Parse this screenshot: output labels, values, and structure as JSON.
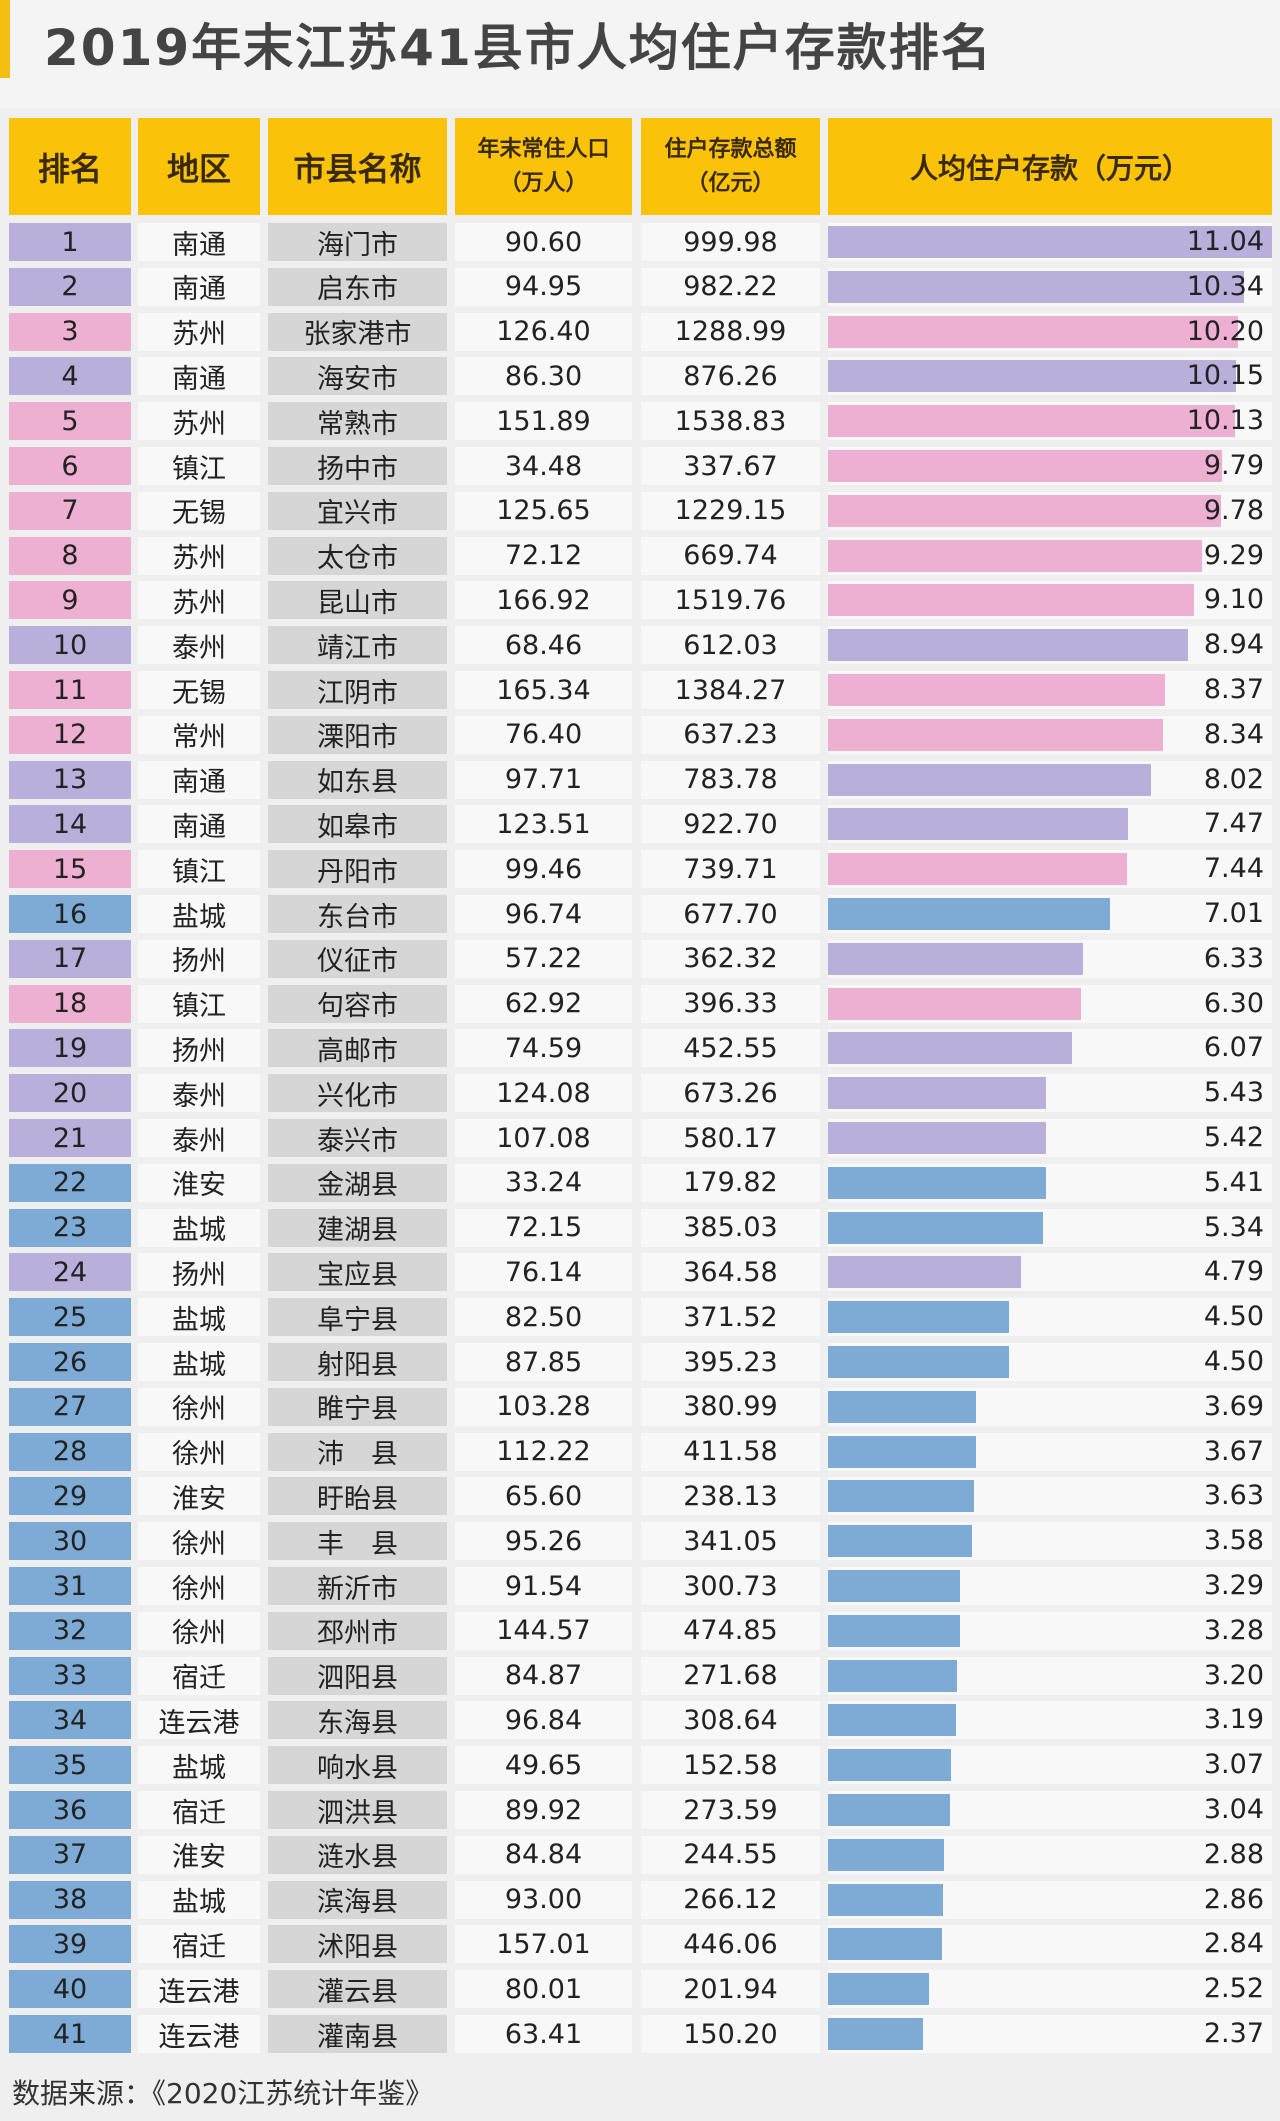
{
  "title": "2019年末江苏41县市人均住户存款排名",
  "headers": {
    "rank": "排名",
    "region": "地区",
    "name": "市县名称",
    "pop": "年末常住人口",
    "pop_unit": "（万人）",
    "dep": "住户存款总额",
    "dep_unit": "（亿元）",
    "per": "人均住户存款（万元）"
  },
  "source": "数据来源：《2020江苏统计年鉴》",
  "colors": {
    "purple": "#b9afdb",
    "pink": "#eeb0d2",
    "blue": "#7eabd6",
    "header": "#fbc20a"
  },
  "region_color": {
    "南通": "purple",
    "泰州": "purple",
    "扬州": "purple",
    "苏州": "pink",
    "镇江": "pink",
    "无锡": "pink",
    "常州": "pink",
    "盐城": "blue",
    "淮安": "blue",
    "徐州": "blue",
    "宿迁": "blue",
    "连云港": "blue"
  },
  "chart_data": {
    "type": "bar",
    "xlim": [
      0,
      11.04
    ],
    "columns": [
      "排名",
      "地区",
      "市县名称",
      "年末常住人口（万人）",
      "住户存款总额（亿元）",
      "人均住户存款（万元）"
    ],
    "rows": [
      [
        "1",
        "南通",
        "海门市",
        "90.60",
        "999.98",
        "11.04"
      ],
      [
        "2",
        "南通",
        "启东市",
        "94.95",
        "982.22",
        "10.34"
      ],
      [
        "3",
        "苏州",
        "张家港市",
        "126.40",
        "1288.99",
        "10.20"
      ],
      [
        "4",
        "南通",
        "海安市",
        "86.30",
        "876.26",
        "10.15"
      ],
      [
        "5",
        "苏州",
        "常熟市",
        "151.89",
        "1538.83",
        "10.13"
      ],
      [
        "6",
        "镇江",
        "扬中市",
        "34.48",
        "337.67",
        "9.79"
      ],
      [
        "7",
        "无锡",
        "宜兴市",
        "125.65",
        "1229.15",
        "9.78"
      ],
      [
        "8",
        "苏州",
        "太仓市",
        "72.12",
        "669.74",
        "9.29"
      ],
      [
        "9",
        "苏州",
        "昆山市",
        "166.92",
        "1519.76",
        "9.10"
      ],
      [
        "10",
        "泰州",
        "靖江市",
        "68.46",
        "612.03",
        "8.94"
      ],
      [
        "11",
        "无锡",
        "江阴市",
        "165.34",
        "1384.27",
        "8.37"
      ],
      [
        "12",
        "常州",
        "溧阳市",
        "76.40",
        "637.23",
        "8.34"
      ],
      [
        "13",
        "南通",
        "如东县",
        "97.71",
        "783.78",
        "8.02"
      ],
      [
        "14",
        "南通",
        "如皋市",
        "123.51",
        "922.70",
        "7.47"
      ],
      [
        "15",
        "镇江",
        "丹阳市",
        "99.46",
        "739.71",
        "7.44"
      ],
      [
        "16",
        "盐城",
        "东台市",
        "96.74",
        "677.70",
        "7.01"
      ],
      [
        "17",
        "扬州",
        "仪征市",
        "57.22",
        "362.32",
        "6.33"
      ],
      [
        "18",
        "镇江",
        "句容市",
        "62.92",
        "396.33",
        "6.30"
      ],
      [
        "19",
        "扬州",
        "高邮市",
        "74.59",
        "452.55",
        "6.07"
      ],
      [
        "20",
        "泰州",
        "兴化市",
        "124.08",
        "673.26",
        "5.43"
      ],
      [
        "21",
        "泰州",
        "泰兴市",
        "107.08",
        "580.17",
        "5.42"
      ],
      [
        "22",
        "淮安",
        "金湖县",
        "33.24",
        "179.82",
        "5.41"
      ],
      [
        "23",
        "盐城",
        "建湖县",
        "72.15",
        "385.03",
        "5.34"
      ],
      [
        "24",
        "扬州",
        "宝应县",
        "76.14",
        "364.58",
        "4.79"
      ],
      [
        "25",
        "盐城",
        "阜宁县",
        "82.50",
        "371.52",
        "4.50"
      ],
      [
        "26",
        "盐城",
        "射阳县",
        "87.85",
        "395.23",
        "4.50"
      ],
      [
        "27",
        "徐州",
        "睢宁县",
        "103.28",
        "380.99",
        "3.69"
      ],
      [
        "28",
        "徐州",
        "沛　县",
        "112.22",
        "411.58",
        "3.67"
      ],
      [
        "29",
        "淮安",
        "盱眙县",
        "65.60",
        "238.13",
        "3.63"
      ],
      [
        "30",
        "徐州",
        "丰　县",
        "95.26",
        "341.05",
        "3.58"
      ],
      [
        "31",
        "徐州",
        "新沂市",
        "91.54",
        "300.73",
        "3.29"
      ],
      [
        "32",
        "徐州",
        "邳州市",
        "144.57",
        "474.85",
        "3.28"
      ],
      [
        "33",
        "宿迁",
        "泗阳县",
        "84.87",
        "271.68",
        "3.20"
      ],
      [
        "34",
        "连云港",
        "东海县",
        "96.84",
        "308.64",
        "3.19"
      ],
      [
        "35",
        "盐城",
        "响水县",
        "49.65",
        "152.58",
        "3.07"
      ],
      [
        "36",
        "宿迁",
        "泗洪县",
        "89.92",
        "273.59",
        "3.04"
      ],
      [
        "37",
        "淮安",
        "涟水县",
        "84.84",
        "244.55",
        "2.88"
      ],
      [
        "38",
        "盐城",
        "滨海县",
        "93.00",
        "266.12",
        "2.86"
      ],
      [
        "39",
        "宿迁",
        "沭阳县",
        "157.01",
        "446.06",
        "2.84"
      ],
      [
        "40",
        "连云港",
        "灌云县",
        "80.01",
        "201.94",
        "2.52"
      ],
      [
        "41",
        "连云港",
        "灌南县",
        "63.41",
        "150.20",
        "2.37"
      ]
    ]
  }
}
